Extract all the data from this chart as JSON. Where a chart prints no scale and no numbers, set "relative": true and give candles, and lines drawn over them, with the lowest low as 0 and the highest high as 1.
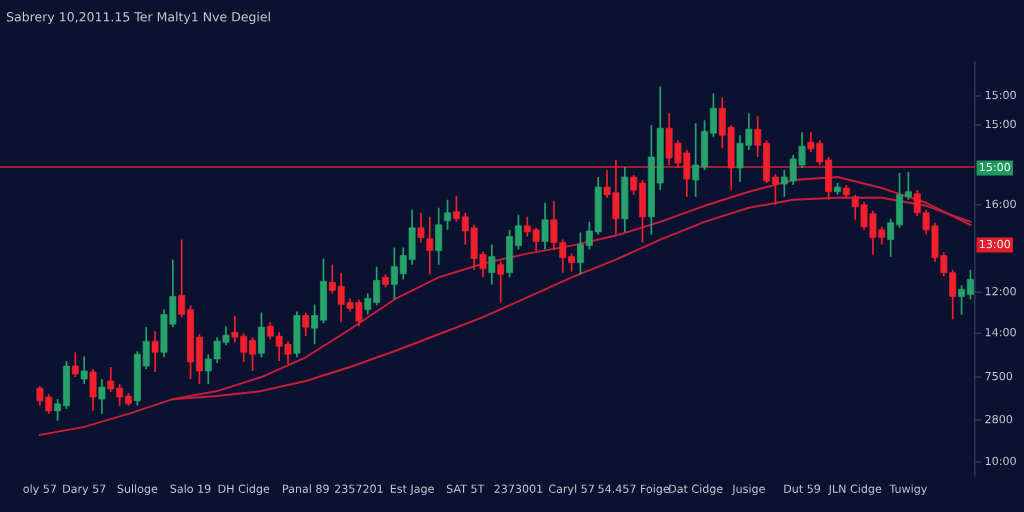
{
  "chart_data": {
    "type": "candlestick",
    "title": "Sabrery 10,2011.15 Ter Malty1 Nve Degiel",
    "categories": [
      "oly 57",
      null,
      null,
      null,
      null,
      "Dary 57",
      null,
      null,
      null,
      null,
      null,
      "Sulloge",
      null,
      null,
      null,
      null,
      null,
      "Salo 19",
      null,
      null,
      null,
      null,
      null,
      "DH Cidge",
      null,
      null,
      null,
      null,
      null,
      null,
      "Panal 89",
      null,
      null,
      null,
      null,
      null,
      "2357201",
      null,
      null,
      null,
      null,
      null,
      "Est Jage",
      null,
      null,
      null,
      null,
      null,
      "SAT 5T",
      null,
      null,
      null,
      null,
      null,
      "2373001",
      null,
      null,
      null,
      null,
      null,
      "Caryl 57",
      null,
      null,
      null,
      null,
      null,
      null,
      "54.457 Foige",
      null,
      null,
      null,
      null,
      null,
      null,
      "Dat Cidge",
      null,
      null,
      null,
      null,
      null,
      "Jusige",
      null,
      null,
      null,
      null,
      null,
      "Dut 59",
      null,
      null,
      null,
      null,
      null,
      "JLN Cidge",
      null,
      null,
      null,
      null,
      null,
      "Tuwigy",
      null,
      null,
      null,
      null,
      null,
      null,
      null
    ],
    "ohlc": [
      [
        0.098,
        0.104,
        0.045,
        0.06
      ],
      [
        0.071,
        0.08,
        0.021,
        0.03
      ],
      [
        0.03,
        0.065,
        0,
        0.051
      ],
      [
        0.045,
        0.179,
        0.036,
        0.164
      ],
      [
        0.164,
        0.205,
        0.131,
        0.14
      ],
      [
        0.125,
        0.193,
        0.11,
        0.149
      ],
      [
        0.146,
        0.155,
        0.03,
        0.071
      ],
      [
        0.065,
        0.125,
        0.021,
        0.101
      ],
      [
        0.119,
        0.161,
        0.086,
        0.095
      ],
      [
        0.098,
        0.11,
        0.045,
        0.071
      ],
      [
        0.074,
        0.083,
        0.045,
        0.051
      ],
      [
        0.06,
        0.208,
        0.045,
        0.199
      ],
      [
        0.164,
        0.28,
        0.155,
        0.238
      ],
      [
        0.238,
        0.268,
        0.146,
        0.205
      ],
      [
        0.205,
        0.333,
        0.19,
        0.318
      ],
      [
        0.289,
        0.482,
        0.28,
        0.372
      ],
      [
        0.375,
        0.542,
        0.31,
        0.318
      ],
      [
        0.333,
        0.345,
        0.125,
        0.176
      ],
      [
        0.25,
        0.259,
        0.11,
        0.149
      ],
      [
        0.149,
        0.199,
        0.11,
        0.185
      ],
      [
        0.185,
        0.25,
        0.173,
        0.238
      ],
      [
        0.235,
        0.283,
        0.226,
        0.256
      ],
      [
        0.265,
        0.313,
        0.235,
        0.25
      ],
      [
        0.253,
        0.262,
        0.176,
        0.205
      ],
      [
        0.241,
        0.25,
        0.149,
        0.199
      ],
      [
        0.202,
        0.324,
        0.19,
        0.28
      ],
      [
        0.283,
        0.295,
        0.244,
        0.253
      ],
      [
        0.253,
        0.265,
        0.179,
        0.223
      ],
      [
        0.229,
        0.238,
        0.17,
        0.199
      ],
      [
        0.202,
        0.327,
        0.19,
        0.315
      ],
      [
        0.315,
        0.324,
        0.253,
        0.28
      ],
      [
        0.277,
        0.348,
        0.229,
        0.315
      ],
      [
        0.301,
        0.485,
        0.292,
        0.417
      ],
      [
        0.414,
        0.467,
        0.381,
        0.39
      ],
      [
        0.402,
        0.443,
        0.295,
        0.348
      ],
      [
        0.354,
        0.366,
        0.327,
        0.336
      ],
      [
        0.354,
        0.363,
        0.283,
        0.298
      ],
      [
        0.333,
        0.381,
        0.318,
        0.366
      ],
      [
        0.354,
        0.461,
        0.345,
        0.42
      ],
      [
        0.429,
        0.438,
        0.399,
        0.408
      ],
      [
        0.408,
        0.518,
        0.363,
        0.461
      ],
      [
        0.44,
        0.518,
        0.423,
        0.494
      ],
      [
        0.482,
        0.631,
        0.467,
        0.577
      ],
      [
        0.577,
        0.622,
        0.533,
        0.548
      ],
      [
        0.545,
        0.61,
        0.438,
        0.509
      ],
      [
        0.509,
        0.637,
        0.467,
        0.586
      ],
      [
        0.598,
        0.661,
        0.571,
        0.622
      ],
      [
        0.625,
        0.673,
        0.595,
        0.604
      ],
      [
        0.61,
        0.622,
        0.527,
        0.568
      ],
      [
        0.577,
        0.586,
        0.452,
        0.485
      ],
      [
        0.497,
        0.506,
        0.429,
        0.455
      ],
      [
        0.443,
        0.527,
        0.408,
        0.491
      ],
      [
        0.467,
        0.476,
        0.354,
        0.438
      ],
      [
        0.443,
        0.571,
        0.429,
        0.551
      ],
      [
        0.524,
        0.616,
        0.512,
        0.583
      ],
      [
        0.583,
        0.61,
        0.551,
        0.565
      ],
      [
        0.571,
        0.577,
        0.506,
        0.536
      ],
      [
        0.536,
        0.652,
        0.512,
        0.601
      ],
      [
        0.601,
        0.658,
        0.512,
        0.533
      ],
      [
        0.533,
        0.542,
        0.443,
        0.488
      ],
      [
        0.491,
        0.5,
        0.446,
        0.473
      ],
      [
        0.473,
        0.563,
        0.438,
        0.527
      ],
      [
        0.524,
        0.595,
        0.512,
        0.568
      ],
      [
        0.565,
        0.729,
        0.557,
        0.699
      ],
      [
        0.699,
        0.75,
        0.667,
        0.676
      ],
      [
        0.682,
        0.78,
        0.557,
        0.604
      ],
      [
        0.604,
        0.759,
        0.565,
        0.729
      ],
      [
        0.729,
        0.735,
        0.676,
        0.69
      ],
      [
        0.711,
        0.72,
        0.533,
        0.61
      ],
      [
        0.61,
        0.884,
        0.557,
        0.789
      ],
      [
        0.711,
        1,
        0.69,
        0.875
      ],
      [
        0.875,
        0.92,
        0.765,
        0.786
      ],
      [
        0.83,
        0.839,
        0.756,
        0.771
      ],
      [
        0.801,
        0.81,
        0.67,
        0.723
      ],
      [
        0.72,
        0.89,
        0.67,
        0.765
      ],
      [
        0.759,
        0.899,
        0.75,
        0.866
      ],
      [
        0.86,
        0.979,
        0.848,
        0.935
      ],
      [
        0.935,
        0.967,
        0.815,
        0.854
      ],
      [
        0.878,
        0.884,
        0.69,
        0.756
      ],
      [
        0.756,
        0.854,
        0.714,
        0.83
      ],
      [
        0.824,
        0.92,
        0.81,
        0.872
      ],
      [
        0.872,
        0.911,
        0.789,
        0.824
      ],
      [
        0.83,
        0.839,
        0.711,
        0.717
      ],
      [
        0.729,
        0.738,
        0.646,
        0.708
      ],
      [
        0.708,
        0.75,
        0.67,
        0.729
      ],
      [
        0.717,
        0.795,
        0.705,
        0.783
      ],
      [
        0.765,
        0.863,
        0.756,
        0.821
      ],
      [
        0.833,
        0.863,
        0.804,
        0.813
      ],
      [
        0.83,
        0.839,
        0.765,
        0.774
      ],
      [
        0.78,
        0.789,
        0.661,
        0.685
      ],
      [
        0.685,
        0.711,
        0.676,
        0.699
      ],
      [
        0.696,
        0.705,
        0.667,
        0.676
      ],
      [
        0.67,
        0.676,
        0.601,
        0.64
      ],
      [
        0.646,
        0.655,
        0.571,
        0.58
      ],
      [
        0.619,
        0.628,
        0.497,
        0.548
      ],
      [
        0.571,
        0.58,
        0.527,
        0.548
      ],
      [
        0.542,
        0.604,
        0.491,
        0.592
      ],
      [
        0.586,
        0.741,
        0.577,
        0.676
      ],
      [
        0.67,
        0.744,
        0.661,
        0.685
      ],
      [
        0.679,
        0.69,
        0.613,
        0.622
      ],
      [
        0.622,
        0.631,
        0.557,
        0.571
      ],
      [
        0.583,
        0.592,
        0.476,
        0.488
      ],
      [
        0.494,
        0.503,
        0.432,
        0.443
      ],
      [
        0.443,
        0.452,
        0.304,
        0.372
      ],
      [
        0.372,
        0.405,
        0.318,
        0.393
      ],
      [
        0.378,
        0.452,
        0.363,
        0.423
      ]
    ],
    "colors": [
      "#f2202c",
      "#f2202c",
      "#25a36a",
      "#25a36a",
      "#f2202c",
      "#25a36a",
      "#f2202c",
      "#25a36a",
      "#f2202c",
      "#f2202c",
      "#f2202c",
      "#25a36a",
      "#25a36a",
      "#f2202c",
      "#25a36a",
      "#25a36a",
      "#f2202c",
      "#f2202c",
      "#f2202c",
      "#25a36a",
      "#25a36a",
      "#25a36a",
      "#f2202c",
      "#f2202c",
      "#f2202c",
      "#25a36a",
      "#f2202c",
      "#f2202c",
      "#f2202c",
      "#25a36a",
      "#f2202c",
      "#25a36a",
      "#25a36a",
      "#f2202c",
      "#f2202c",
      "#f2202c",
      "#f2202c",
      "#25a36a",
      "#25a36a",
      "#f2202c",
      "#25a36a",
      "#25a36a",
      "#25a36a",
      "#f2202c",
      "#f2202c",
      "#25a36a",
      "#25a36a",
      "#f2202c",
      "#f2202c",
      "#f2202c",
      "#f2202c",
      "#25a36a",
      "#f2202c",
      "#25a36a",
      "#25a36a",
      "#f2202c",
      "#f2202c",
      "#25a36a",
      "#f2202c",
      "#f2202c",
      "#f2202c",
      "#25a36a",
      "#25a36a",
      "#25a36a",
      "#f2202c",
      "#f2202c",
      "#25a36a",
      "#f2202c",
      "#f2202c",
      "#25a36a",
      "#25a36a",
      "#f2202c",
      "#f2202c",
      "#f2202c",
      "#25a36a",
      "#25a36a",
      "#25a36a",
      "#f2202c",
      "#f2202c",
      "#25a36a",
      "#25a36a",
      "#f2202c",
      "#f2202c",
      "#f2202c",
      "#25a36a",
      "#25a36a",
      "#25a36a",
      "#f2202c",
      "#f2202c",
      "#f2202c",
      "#25a36a",
      "#f2202c",
      "#f2202c",
      "#f2202c",
      "#f2202c",
      "#f2202c",
      "#25a36a",
      "#25a36a",
      "#25a36a",
      "#f2202c",
      "#f2202c",
      "#f2202c",
      "#f2202c",
      "#f2202c",
      "#25a36a",
      "#25a36a"
    ],
    "relative": true,
    "series": [
      {
        "type": "line",
        "color": "#c81e3c",
        "values": [
          -0.042,
          null,
          null,
          null,
          null,
          -0.018,
          null,
          null,
          null,
          null,
          0.021,
          null,
          null,
          null,
          null,
          0.065,
          null,
          null,
          null,
          null,
          0.089,
          null,
          null,
          null,
          null,
          0.131,
          null,
          null,
          null,
          null,
          0.19,
          null,
          null,
          null,
          null,
          0.274,
          null,
          null,
          null,
          null,
          0.363,
          null,
          null,
          null,
          null,
          0.429,
          null,
          null,
          null,
          null,
          0.47,
          null,
          null,
          null,
          null,
          0.5,
          null,
          null,
          null,
          null,
          0.524,
          null,
          null,
          null,
          null,
          0.554,
          null,
          null,
          null,
          null,
          0.595,
          null,
          null,
          null,
          null,
          0.643,
          null,
          null,
          null,
          null,
          0.685,
          null,
          null,
          null,
          null,
          0.72,
          null,
          null,
          null,
          null,
          0.729,
          null,
          null,
          null,
          null,
          0.696,
          null,
          null,
          null,
          null,
          0.652,
          null,
          null,
          null,
          null,
          0.586
        ]
      },
      {
        "type": "line",
        "color": "#c81e3c",
        "values": [
          null,
          null,
          null,
          null,
          null,
          null,
          null,
          null,
          null,
          null,
          null,
          null,
          null,
          null,
          null,
          0.065,
          null,
          null,
          null,
          null,
          0.074,
          null,
          null,
          null,
          null,
          0.089,
          null,
          null,
          null,
          null,
          0.119,
          null,
          null,
          null,
          null,
          0.161,
          null,
          null,
          null,
          null,
          0.208,
          null,
          null,
          null,
          null,
          0.259,
          null,
          null,
          null,
          null,
          0.31,
          null,
          null,
          null,
          null,
          0.369,
          null,
          null,
          null,
          null,
          0.429,
          null,
          null,
          null,
          null,
          0.482,
          null,
          null,
          null,
          null,
          0.542,
          null,
          null,
          null,
          null,
          0.595,
          null,
          null,
          null,
          null,
          0.637,
          null,
          null,
          null,
          null,
          0.661,
          null,
          null,
          null,
          null,
          0.667,
          null,
          null,
          null,
          null,
          0.667,
          null,
          null,
          null,
          null,
          0.643,
          null,
          null,
          null,
          null,
          0.595
        ]
      }
    ],
    "ref_lines": [
      {
        "axis": "y",
        "value": 0.759,
        "color": "#d42030"
      }
    ],
    "annotations": [
      "15:00",
      "15:00",
      "15:00",
      "16:00",
      "13:00",
      "12:00",
      "14:00",
      "7500",
      "2800",
      "10:00"
    ],
    "grid": false,
    "legend": false
  }
}
